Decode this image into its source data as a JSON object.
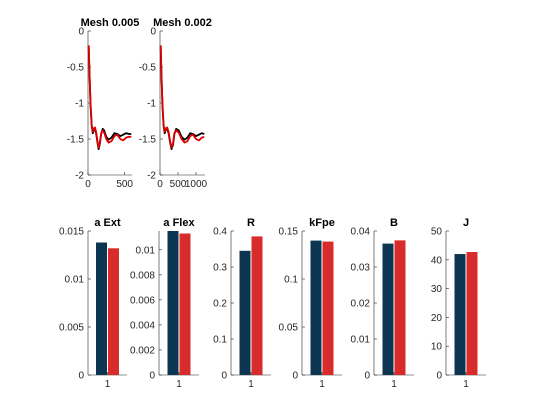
{
  "chart_data": [
    {
      "type": "line",
      "title": "Mesh 0.005",
      "xlim": [
        0,
        600
      ],
      "ylim": [
        -2,
        0
      ],
      "xticks": [
        0,
        500
      ],
      "yticks": [
        0,
        -0.5,
        -1,
        -1.5,
        -2
      ],
      "series": [
        {
          "color": "#000000",
          "x": [
            10,
            20,
            35,
            50,
            65,
            80,
            95,
            110,
            130,
            145,
            160,
            180,
            200,
            220,
            250,
            280,
            320,
            360,
            400,
            440,
            480,
            520,
            560,
            590
          ],
          "y": [
            -0.22,
            -0.6,
            -1.05,
            -1.32,
            -1.42,
            -1.37,
            -1.36,
            -1.42,
            -1.55,
            -1.64,
            -1.58,
            -1.43,
            -1.36,
            -1.38,
            -1.47,
            -1.51,
            -1.48,
            -1.42,
            -1.43,
            -1.46,
            -1.44,
            -1.42,
            -1.43,
            -1.43
          ]
        },
        {
          "color": "#e00000",
          "x": [
            10,
            20,
            35,
            50,
            65,
            80,
            95,
            110,
            130,
            145,
            160,
            180,
            200,
            220,
            250,
            280,
            320,
            360,
            400,
            440,
            480,
            520,
            560,
            590
          ],
          "y": [
            -0.2,
            -0.57,
            -1.02,
            -1.3,
            -1.4,
            -1.35,
            -1.34,
            -1.4,
            -1.53,
            -1.62,
            -1.56,
            -1.42,
            -1.38,
            -1.41,
            -1.5,
            -1.55,
            -1.53,
            -1.46,
            -1.44,
            -1.5,
            -1.52,
            -1.48,
            -1.47,
            -1.47
          ]
        }
      ]
    },
    {
      "type": "line",
      "title": "Mesh 0.002",
      "xlim": [
        0,
        1250
      ],
      "ylim": [
        -2,
        0
      ],
      "xticks": [
        0,
        500,
        1000
      ],
      "yticks": [
        0,
        -0.5,
        -1,
        -1.5,
        -2
      ],
      "series": [
        {
          "color": "#000000",
          "x": [
            20,
            40,
            70,
            100,
            130,
            160,
            200,
            240,
            280,
            320,
            360,
            400,
            450,
            520,
            600,
            680,
            760,
            840,
            920,
            1000,
            1080,
            1160,
            1230
          ],
          "y": [
            -0.22,
            -0.6,
            -1.05,
            -1.32,
            -1.42,
            -1.37,
            -1.36,
            -1.42,
            -1.55,
            -1.64,
            -1.58,
            -1.43,
            -1.36,
            -1.38,
            -1.47,
            -1.51,
            -1.48,
            -1.42,
            -1.43,
            -1.46,
            -1.44,
            -1.42,
            -1.43
          ]
        },
        {
          "color": "#e00000",
          "x": [
            20,
            40,
            70,
            100,
            130,
            160,
            200,
            240,
            280,
            320,
            360,
            400,
            450,
            520,
            600,
            680,
            760,
            840,
            920,
            1000,
            1080,
            1160,
            1230
          ],
          "y": [
            -0.2,
            -0.57,
            -1.02,
            -1.3,
            -1.4,
            -1.35,
            -1.34,
            -1.4,
            -1.53,
            -1.62,
            -1.56,
            -1.42,
            -1.38,
            -1.41,
            -1.5,
            -1.55,
            -1.53,
            -1.46,
            -1.44,
            -1.5,
            -1.52,
            -1.48,
            -1.47
          ]
        }
      ]
    },
    {
      "type": "bar",
      "title": "a Ext",
      "categories": [
        "1"
      ],
      "ylim": [
        0,
        0.015
      ],
      "yticks": [
        0,
        0.005,
        0.01,
        0.015
      ],
      "ytick_labels": [
        "0",
        "0.005",
        "0.01",
        "0.015"
      ],
      "series": [
        {
          "values": [
            0.0138
          ],
          "color": "#0b3550"
        },
        {
          "values": [
            0.0132
          ],
          "color": "#d82b2b"
        }
      ]
    },
    {
      "type": "bar",
      "title": "a Flex",
      "categories": [
        "1"
      ],
      "ylim": [
        0,
        0.0115
      ],
      "yticks": [
        0,
        0.002,
        0.004,
        0.006,
        0.008,
        0.01
      ],
      "ytick_labels": [
        "0",
        "0.002",
        "0.004",
        "0.006",
        "0.008",
        "0.01"
      ],
      "series": [
        {
          "values": [
            0.0115
          ],
          "color": "#0b3550"
        },
        {
          "values": [
            0.0113
          ],
          "color": "#d82b2b"
        }
      ]
    },
    {
      "type": "bar",
      "title": "R",
      "categories": [
        "1"
      ],
      "ylim": [
        0,
        0.4
      ],
      "yticks": [
        0,
        0.1,
        0.2,
        0.3,
        0.4
      ],
      "ytick_labels": [
        "0",
        "0.1",
        "0.2",
        "0.3",
        "0.4"
      ],
      "series": [
        {
          "values": [
            0.345
          ],
          "color": "#0b3550"
        },
        {
          "values": [
            0.385
          ],
          "color": "#d82b2b"
        }
      ]
    },
    {
      "type": "bar",
      "title": "kFpe",
      "categories": [
        "1"
      ],
      "ylim": [
        0,
        0.15
      ],
      "yticks": [
        0,
        0.05,
        0.1,
        0.15
      ],
      "ytick_labels": [
        "0",
        "0.05",
        "0.1",
        "0.15"
      ],
      "series": [
        {
          "values": [
            0.14
          ],
          "color": "#0b3550"
        },
        {
          "values": [
            0.139
          ],
          "color": "#d82b2b"
        }
      ]
    },
    {
      "type": "bar",
      "title": "B",
      "categories": [
        "1"
      ],
      "ylim": [
        0,
        0.04
      ],
      "yticks": [
        0,
        0.01,
        0.02,
        0.03,
        0.04
      ],
      "ytick_labels": [
        "0",
        "0.01",
        "0.02",
        "0.03",
        "0.04"
      ],
      "series": [
        {
          "values": [
            0.0365
          ],
          "color": "#0b3550"
        },
        {
          "values": [
            0.0374
          ],
          "color": "#d82b2b"
        }
      ]
    },
    {
      "type": "bar",
      "title": "J",
      "categories": [
        "1"
      ],
      "ylim": [
        0,
        50
      ],
      "yticks": [
        0,
        10,
        20,
        30,
        40,
        50
      ],
      "ytick_labels": [
        "0",
        "10",
        "20",
        "30",
        "40",
        "50"
      ],
      "series": [
        {
          "values": [
            42
          ],
          "color": "#0b3550"
        },
        {
          "values": [
            42.7
          ],
          "color": "#d82b2b"
        }
      ]
    }
  ]
}
